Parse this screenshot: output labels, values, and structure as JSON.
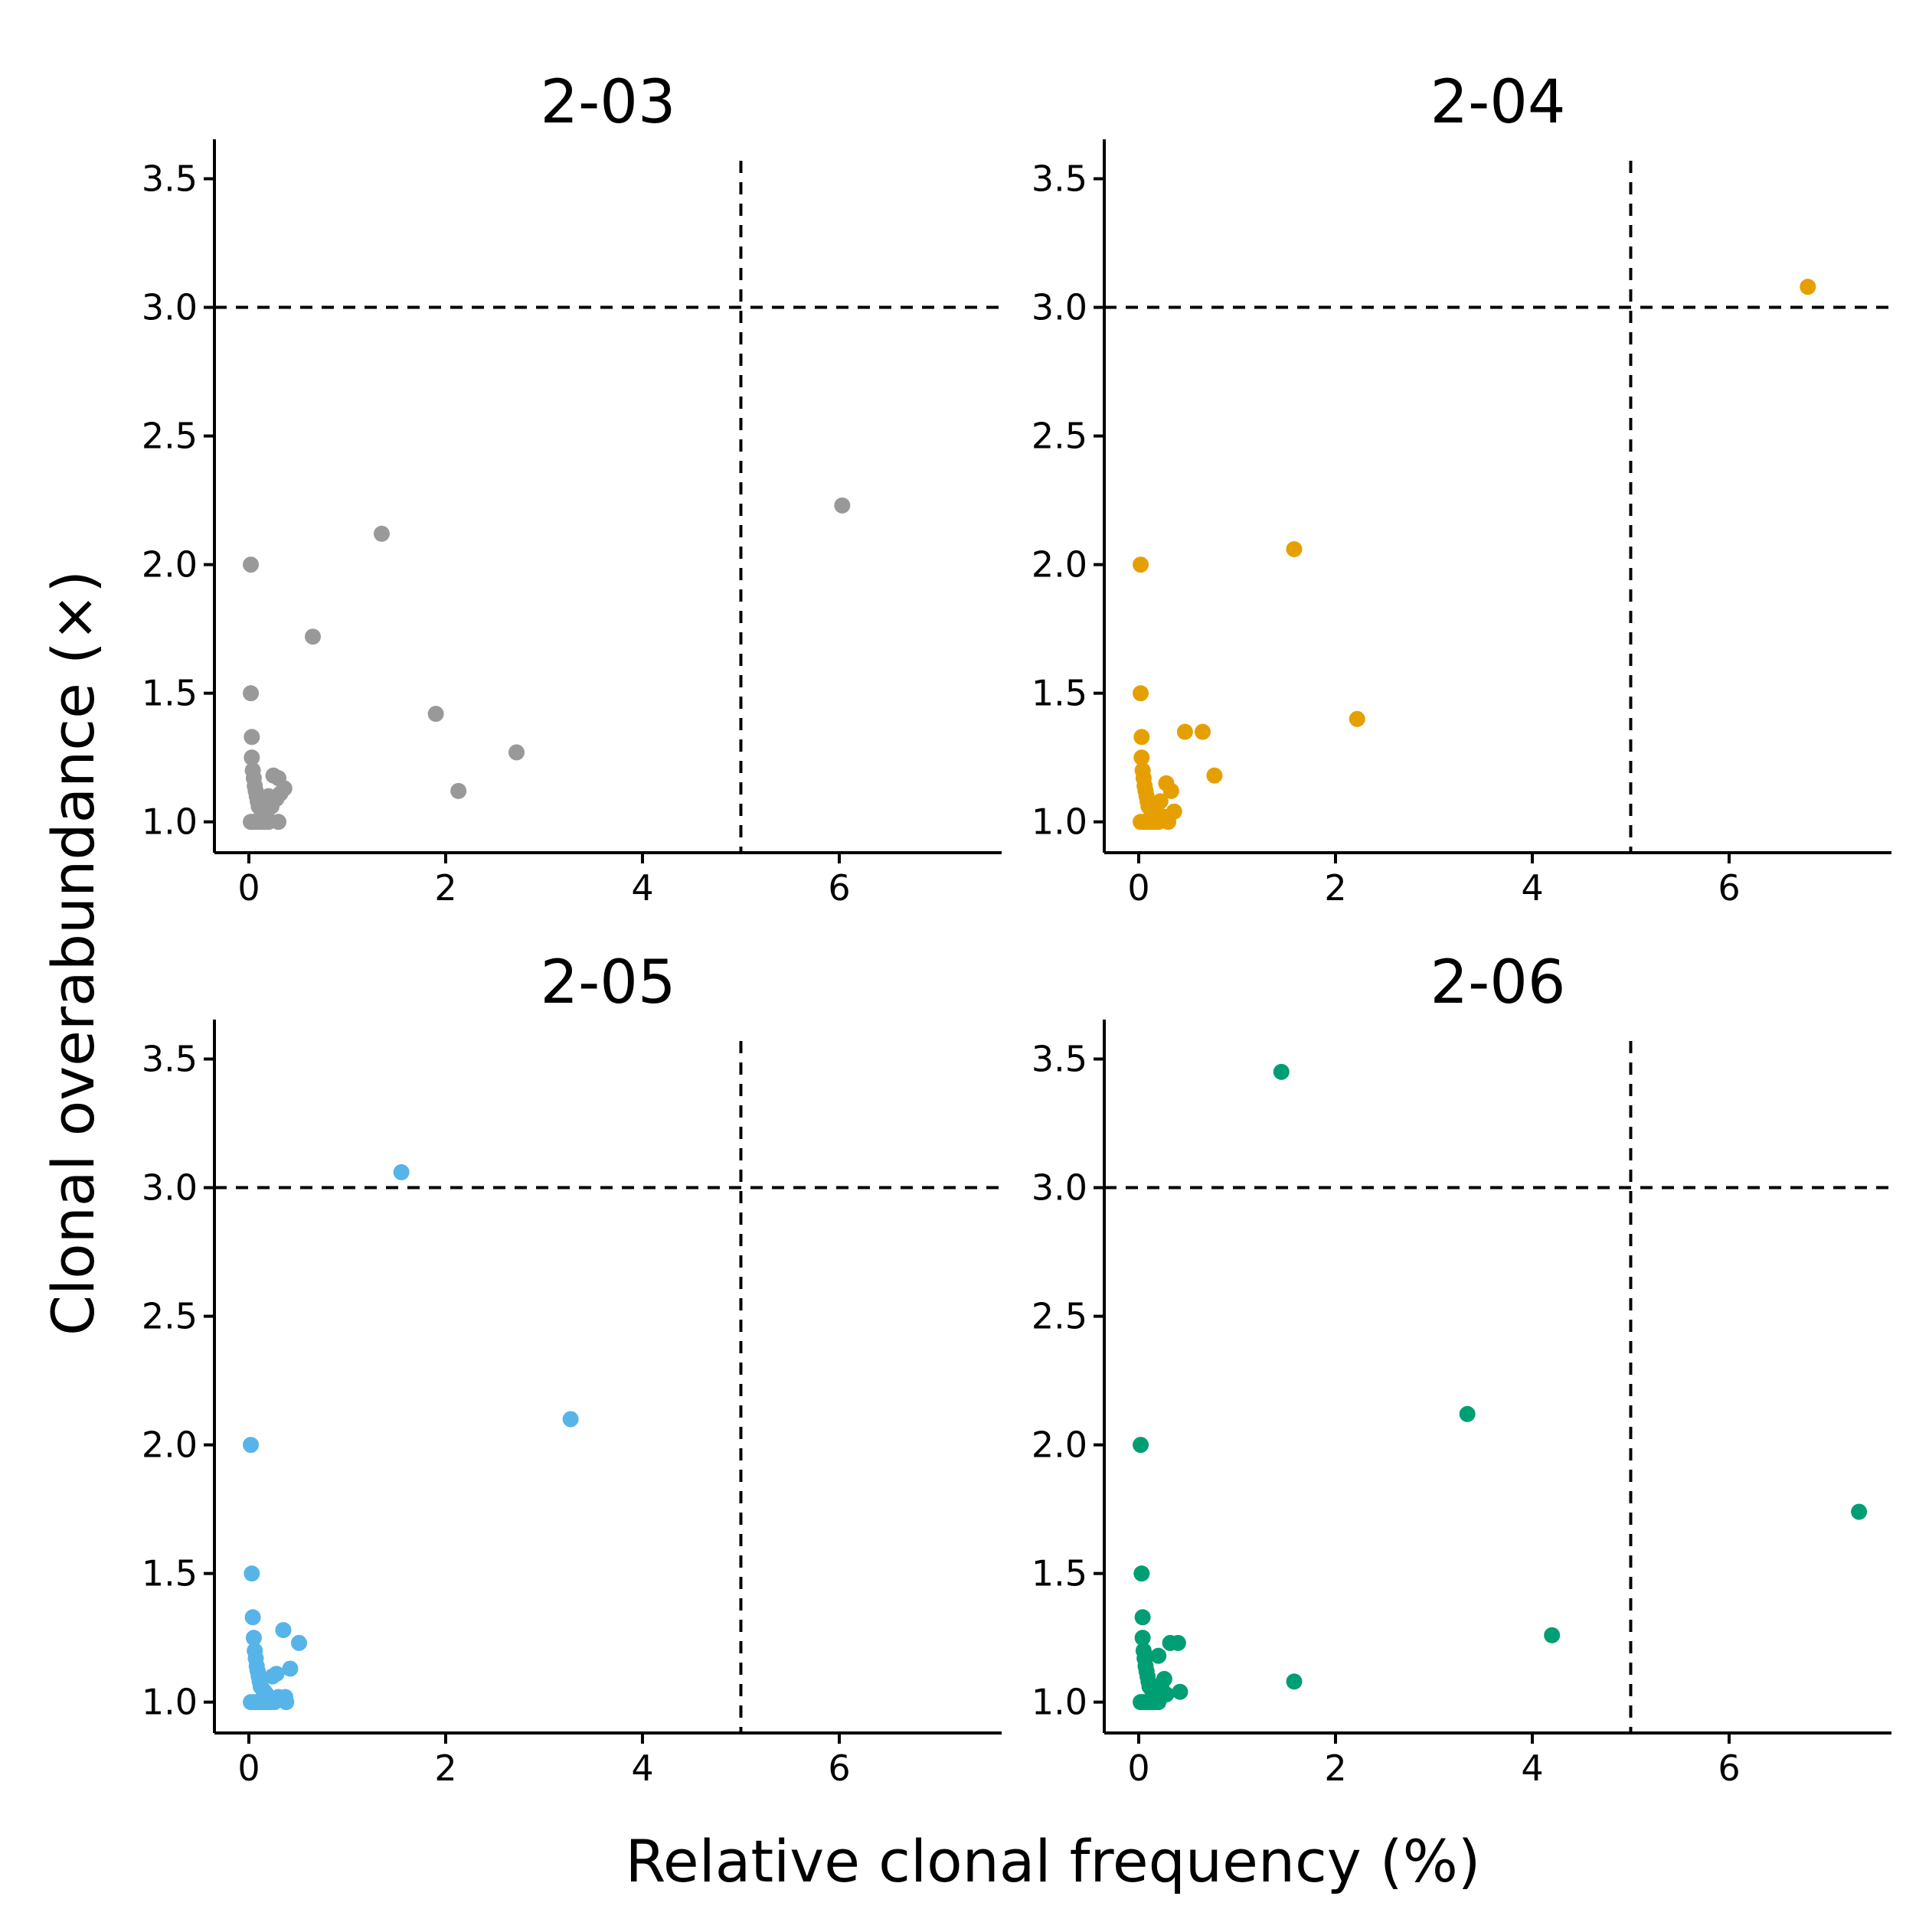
{
  "figure": {
    "xlabel": "Relative clonal frequency (%)",
    "ylabel": "Clonal overabundance (×)"
  },
  "chart_data": [
    {
      "type": "scatter",
      "title": "2-03",
      "color": "#999999",
      "xlim": [
        -0.35,
        7.65
      ],
      "ylim": [
        0.88,
        3.57
      ],
      "xticks": [
        0,
        2,
        4,
        6
      ],
      "xtick_labels": [
        "0",
        "2",
        "4",
        "6"
      ],
      "yticks": [
        1.0,
        1.5,
        2.0,
        2.5,
        3.0,
        3.5
      ],
      "ytick_labels": [
        "1.0",
        "1.5",
        "2.0",
        "2.5",
        "3.0",
        "3.5"
      ],
      "threshold_x": 5,
      "threshold_y": 3,
      "grid": false,
      "points": [
        {
          "x": 0.02,
          "y": 2.0
        },
        {
          "x": 0.02,
          "y": 1.5
        },
        {
          "x": 0.03,
          "y": 1.33
        },
        {
          "x": 0.03,
          "y": 1.25
        },
        {
          "x": 0.04,
          "y": 1.2
        },
        {
          "x": 0.05,
          "y": 1.17
        },
        {
          "x": 0.06,
          "y": 1.14
        },
        {
          "x": 0.07,
          "y": 1.12
        },
        {
          "x": 0.08,
          "y": 1.1
        },
        {
          "x": 0.09,
          "y": 1.08
        },
        {
          "x": 0.1,
          "y": 1.06
        },
        {
          "x": 0.12,
          "y": 1.05
        },
        {
          "x": 0.14,
          "y": 1.04
        },
        {
          "x": 0.16,
          "y": 1.03
        },
        {
          "x": 0.02,
          "y": 1.0
        },
        {
          "x": 0.05,
          "y": 1.0
        },
        {
          "x": 0.08,
          "y": 1.0
        },
        {
          "x": 0.11,
          "y": 1.0
        },
        {
          "x": 0.14,
          "y": 1.0
        },
        {
          "x": 0.17,
          "y": 1.0
        },
        {
          "x": 0.2,
          "y": 1.0
        },
        {
          "x": 0.2,
          "y": 1.1
        },
        {
          "x": 0.23,
          "y": 1.06
        },
        {
          "x": 0.25,
          "y": 1.18
        },
        {
          "x": 0.28,
          "y": 1.09
        },
        {
          "x": 0.3,
          "y": 1.17
        },
        {
          "x": 0.3,
          "y": 1.0
        },
        {
          "x": 0.32,
          "y": 1.11
        },
        {
          "x": 0.36,
          "y": 1.13
        },
        {
          "x": 0.18,
          "y": 1.02
        },
        {
          "x": 0.65,
          "y": 1.72
        },
        {
          "x": 1.35,
          "y": 2.12
        },
        {
          "x": 1.9,
          "y": 1.42
        },
        {
          "x": 2.13,
          "y": 1.12
        },
        {
          "x": 2.72,
          "y": 1.27
        },
        {
          "x": 6.03,
          "y": 2.23
        }
      ]
    },
    {
      "type": "scatter",
      "title": "2-04",
      "color": "#E69F00",
      "xlim": [
        -0.35,
        7.65
      ],
      "ylim": [
        0.88,
        3.57
      ],
      "xticks": [
        0,
        2,
        4,
        6
      ],
      "xtick_labels": [
        "0",
        "2",
        "4",
        "6"
      ],
      "yticks": [
        1.0,
        1.5,
        2.0,
        2.5,
        3.0,
        3.5
      ],
      "ytick_labels": [
        "1.0",
        "1.5",
        "2.0",
        "2.5",
        "3.0",
        "3.5"
      ],
      "threshold_x": 5,
      "threshold_y": 3,
      "grid": false,
      "points": [
        {
          "x": 0.02,
          "y": 2.0
        },
        {
          "x": 0.02,
          "y": 1.5
        },
        {
          "x": 0.03,
          "y": 1.33
        },
        {
          "x": 0.03,
          "y": 1.25
        },
        {
          "x": 0.04,
          "y": 1.2
        },
        {
          "x": 0.05,
          "y": 1.17
        },
        {
          "x": 0.06,
          "y": 1.14
        },
        {
          "x": 0.07,
          "y": 1.12
        },
        {
          "x": 0.08,
          "y": 1.1
        },
        {
          "x": 0.09,
          "y": 1.08
        },
        {
          "x": 0.1,
          "y": 1.06
        },
        {
          "x": 0.12,
          "y": 1.05
        },
        {
          "x": 0.14,
          "y": 1.03
        },
        {
          "x": 0.02,
          "y": 1.0
        },
        {
          "x": 0.05,
          "y": 1.0
        },
        {
          "x": 0.08,
          "y": 1.0
        },
        {
          "x": 0.11,
          "y": 1.0
        },
        {
          "x": 0.14,
          "y": 1.0
        },
        {
          "x": 0.17,
          "y": 1.0
        },
        {
          "x": 0.2,
          "y": 1.0
        },
        {
          "x": 0.22,
          "y": 1.08
        },
        {
          "x": 0.26,
          "y": 1.02
        },
        {
          "x": 0.28,
          "y": 1.15
        },
        {
          "x": 0.3,
          "y": 1.0
        },
        {
          "x": 0.33,
          "y": 1.12
        },
        {
          "x": 0.36,
          "y": 1.04
        },
        {
          "x": 0.18,
          "y": 1.03
        },
        {
          "x": 0.47,
          "y": 1.35
        },
        {
          "x": 0.65,
          "y": 1.35
        },
        {
          "x": 0.77,
          "y": 1.18
        },
        {
          "x": 1.58,
          "y": 2.06
        },
        {
          "x": 2.22,
          "y": 1.4
        },
        {
          "x": 6.8,
          "y": 3.08
        }
      ]
    },
    {
      "type": "scatter",
      "title": "2-05",
      "color": "#56B4E9",
      "xlim": [
        -0.35,
        7.65
      ],
      "ylim": [
        0.88,
        3.57
      ],
      "xticks": [
        0,
        2,
        4,
        6
      ],
      "xtick_labels": [
        "0",
        "2",
        "4",
        "6"
      ],
      "yticks": [
        1.0,
        1.5,
        2.0,
        2.5,
        3.0,
        3.5
      ],
      "ytick_labels": [
        "1.0",
        "1.5",
        "2.0",
        "2.5",
        "3.0",
        "3.5"
      ],
      "threshold_x": 5,
      "threshold_y": 3,
      "grid": false,
      "points": [
        {
          "x": 0.02,
          "y": 2.0
        },
        {
          "x": 0.03,
          "y": 1.5
        },
        {
          "x": 0.04,
          "y": 1.33
        },
        {
          "x": 0.05,
          "y": 1.25
        },
        {
          "x": 0.06,
          "y": 1.2
        },
        {
          "x": 0.07,
          "y": 1.17
        },
        {
          "x": 0.08,
          "y": 1.14
        },
        {
          "x": 0.09,
          "y": 1.12
        },
        {
          "x": 0.1,
          "y": 1.1
        },
        {
          "x": 0.11,
          "y": 1.08
        },
        {
          "x": 0.12,
          "y": 1.06
        },
        {
          "x": 0.14,
          "y": 1.05
        },
        {
          "x": 0.16,
          "y": 1.04
        },
        {
          "x": 0.18,
          "y": 1.03
        },
        {
          "x": 0.02,
          "y": 1.0
        },
        {
          "x": 0.06,
          "y": 1.0
        },
        {
          "x": 0.1,
          "y": 1.0
        },
        {
          "x": 0.14,
          "y": 1.0
        },
        {
          "x": 0.18,
          "y": 1.0
        },
        {
          "x": 0.22,
          "y": 1.0
        },
        {
          "x": 0.26,
          "y": 1.0
        },
        {
          "x": 0.24,
          "y": 1.1
        },
        {
          "x": 0.28,
          "y": 1.11
        },
        {
          "x": 0.3,
          "y": 1.02
        },
        {
          "x": 0.35,
          "y": 1.28
        },
        {
          "x": 0.37,
          "y": 1.02
        },
        {
          "x": 0.38,
          "y": 1.0
        },
        {
          "x": 0.42,
          "y": 1.13
        },
        {
          "x": 0.51,
          "y": 1.23
        },
        {
          "x": 1.55,
          "y": 3.06
        },
        {
          "x": 3.27,
          "y": 2.1
        }
      ]
    },
    {
      "type": "scatter",
      "title": "2-06",
      "color": "#009E73",
      "xlim": [
        -0.35,
        7.65
      ],
      "ylim": [
        0.88,
        3.57
      ],
      "xticks": [
        0,
        2,
        4,
        6
      ],
      "xtick_labels": [
        "0",
        "2",
        "4",
        "6"
      ],
      "yticks": [
        1.0,
        1.5,
        2.0,
        2.5,
        3.0,
        3.5
      ],
      "ytick_labels": [
        "1.0",
        "1.5",
        "2.0",
        "2.5",
        "3.0",
        "3.5"
      ],
      "threshold_x": 5,
      "threshold_y": 3,
      "grid": false,
      "points": [
        {
          "x": 0.02,
          "y": 2.0
        },
        {
          "x": 0.03,
          "y": 1.5
        },
        {
          "x": 0.04,
          "y": 1.33
        },
        {
          "x": 0.04,
          "y": 1.25
        },
        {
          "x": 0.05,
          "y": 1.2
        },
        {
          "x": 0.06,
          "y": 1.17
        },
        {
          "x": 0.07,
          "y": 1.14
        },
        {
          "x": 0.08,
          "y": 1.12
        },
        {
          "x": 0.09,
          "y": 1.1
        },
        {
          "x": 0.1,
          "y": 1.08
        },
        {
          "x": 0.11,
          "y": 1.06
        },
        {
          "x": 0.13,
          "y": 1.05
        },
        {
          "x": 0.15,
          "y": 1.04
        },
        {
          "x": 0.17,
          "y": 1.03
        },
        {
          "x": 0.02,
          "y": 1.0
        },
        {
          "x": 0.05,
          "y": 1.0
        },
        {
          "x": 0.08,
          "y": 1.0
        },
        {
          "x": 0.11,
          "y": 1.0
        },
        {
          "x": 0.14,
          "y": 1.0
        },
        {
          "x": 0.17,
          "y": 1.0
        },
        {
          "x": 0.2,
          "y": 1.0
        },
        {
          "x": 0.2,
          "y": 1.18
        },
        {
          "x": 0.23,
          "y": 1.06
        },
        {
          "x": 0.26,
          "y": 1.09
        },
        {
          "x": 0.28,
          "y": 1.03
        },
        {
          "x": 0.32,
          "y": 1.23
        },
        {
          "x": 0.4,
          "y": 1.23
        },
        {
          "x": 0.42,
          "y": 1.04
        },
        {
          "x": 1.45,
          "y": 3.45
        },
        {
          "x": 1.58,
          "y": 1.08
        },
        {
          "x": 3.34,
          "y": 2.12
        },
        {
          "x": 4.2,
          "y": 1.26
        },
        {
          "x": 7.32,
          "y": 1.74
        }
      ]
    }
  ]
}
